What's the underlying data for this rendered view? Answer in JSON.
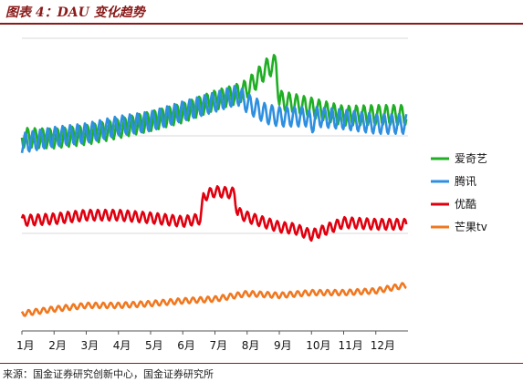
{
  "header": {
    "title": "图表 4：DAU 变化趋势"
  },
  "footer": {
    "source": "来源：国金证券研究创新中心，国金证券研究所"
  },
  "chart_data": {
    "type": "line",
    "title": "DAU 变化趋势",
    "xlabel": "",
    "ylabel": "",
    "categories": [
      "1月",
      "2月",
      "3月",
      "4月",
      "5月",
      "6月",
      "7月",
      "8月",
      "9月",
      "10月",
      "11月",
      "12月"
    ],
    "grid": "horizontal",
    "legend_position": "right",
    "y_axis": "unlabeled",
    "series": [
      {
        "name": "爱奇艺",
        "color": "#1fae24",
        "level_profile": [
          [
            1,
            151
          ],
          [
            2,
            152
          ],
          [
            3,
            148
          ],
          [
            3.6,
            144
          ],
          [
            4,
            141
          ],
          [
            5,
            133
          ],
          [
            6,
            124
          ],
          [
            7,
            110
          ],
          [
            7.6,
            104
          ],
          [
            8,
            98
          ],
          [
            8.6,
            75
          ],
          [
            8.9,
            70
          ],
          [
            9,
            110
          ],
          [
            10,
            118
          ],
          [
            11,
            127
          ],
          [
            12,
            126
          ]
        ],
        "oscillation": 11,
        "period_days": 7
      },
      {
        "name": "腾讯",
        "color": "#2e8fe0",
        "level_profile": [
          [
            1,
            157
          ],
          [
            2,
            150
          ],
          [
            3,
            146
          ],
          [
            4,
            138
          ],
          [
            5,
            133
          ],
          [
            6,
            122
          ],
          [
            7,
            112
          ],
          [
            7.7,
            104
          ],
          [
            8,
            113
          ],
          [
            8.6,
            125
          ],
          [
            9,
            128
          ],
          [
            9.9,
            128
          ],
          [
            10,
            140
          ],
          [
            10.1,
            128
          ],
          [
            11,
            131
          ],
          [
            12,
            136
          ]
        ],
        "oscillation": 11,
        "period_days": 7
      },
      {
        "name": "优酷",
        "color": "#e0000f",
        "level_profile": [
          [
            1,
            242
          ],
          [
            2,
            240
          ],
          [
            3,
            236
          ],
          [
            4,
            236
          ],
          [
            5,
            239
          ],
          [
            6,
            243
          ],
          [
            6.55,
            240
          ],
          [
            6.65,
            215
          ],
          [
            7,
            210
          ],
          [
            7.6,
            212
          ],
          [
            7.7,
            233
          ],
          [
            8,
            238
          ],
          [
            9,
            249
          ],
          [
            9.5,
            251
          ],
          [
            10,
            258
          ],
          [
            10.5,
            251
          ],
          [
            11,
            244
          ],
          [
            12,
            246
          ]
        ],
        "oscillation": 6,
        "period_days": 7
      },
      {
        "name": "芒果tv",
        "color": "#f07820",
        "level_profile": [
          [
            1,
            344
          ],
          [
            2,
            339
          ],
          [
            3,
            335
          ],
          [
            4,
            335
          ],
          [
            5,
            333
          ],
          [
            6,
            330
          ],
          [
            7,
            328
          ],
          [
            8,
            322
          ],
          [
            9,
            324
          ],
          [
            10,
            321
          ],
          [
            11,
            321
          ],
          [
            12,
            319
          ],
          [
            12.9,
            313
          ]
        ],
        "oscillation": 3,
        "period_days": 7
      }
    ]
  }
}
